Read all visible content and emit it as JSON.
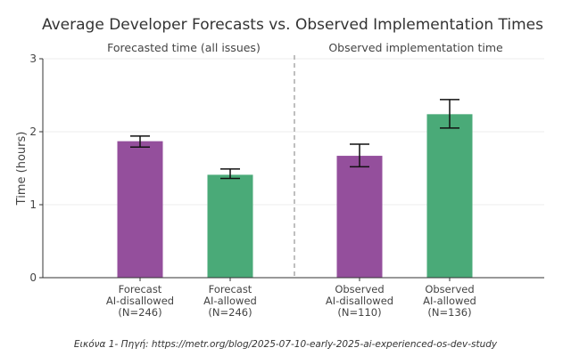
{
  "chart_data": {
    "type": "bar",
    "title": "Average Developer Forecasts vs. Observed Implementation Times",
    "panels": [
      {
        "title": "Forecasted time (all issues)",
        "categories": [
          0,
          1
        ]
      },
      {
        "title": "Observed implementation time",
        "categories": [
          2,
          3
        ]
      }
    ],
    "ylabel": "Time (hours)",
    "xlabel": "",
    "ylim": [
      0,
      3
    ],
    "yticks": [
      0,
      1,
      2,
      3
    ],
    "grid": true,
    "categories": [
      {
        "lines": [
          "Forecast",
          "AI-disallowed",
          "(N=246)"
        ]
      },
      {
        "lines": [
          "Forecast",
          "AI-allowed",
          "(N=246)"
        ]
      },
      {
        "lines": [
          "Observed",
          "AI-disallowed",
          "(N=110)"
        ]
      },
      {
        "lines": [
          "Observed",
          "AI-allowed",
          "(N=136)"
        ]
      }
    ],
    "values": [
      1.87,
      1.41,
      1.67,
      2.24
    ],
    "error_low": [
      1.79,
      1.36,
      1.52,
      2.05
    ],
    "error_high": [
      1.94,
      1.49,
      1.83,
      2.44
    ],
    "colors": [
      "#944f9c",
      "#4aaa78",
      "#944f9c",
      "#4aaa78"
    ]
  },
  "caption": "Εικόνα 1- Πηγή: https://metr.org/blog/2025-07-10-early-2025-ai-experienced-os-dev-study"
}
